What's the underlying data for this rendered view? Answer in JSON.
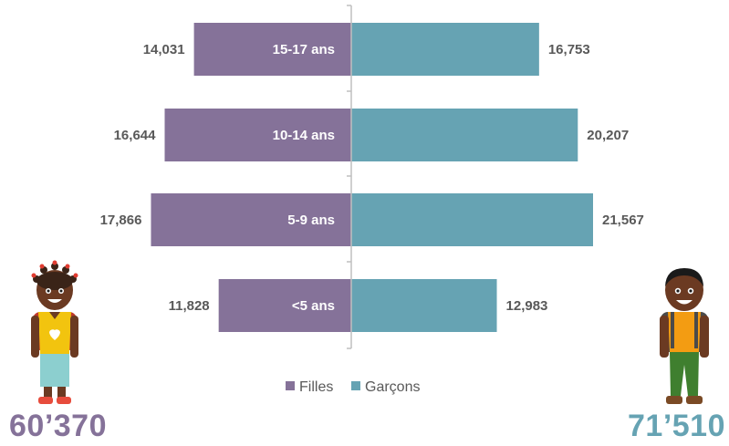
{
  "colors": {
    "girls": "#857299",
    "boys": "#66a3b3",
    "axis": "#bfbfbf",
    "value_text": "#595959"
  },
  "chart_data": {
    "type": "bar",
    "orientation": "horizontal-butterfly",
    "categories": [
      "15-17 ans",
      "10-14 ans",
      "5-9 ans",
      "<5 ans"
    ],
    "series": [
      {
        "name": "Filles",
        "values": [
          14031,
          16644,
          17866,
          11828
        ],
        "labels": [
          "14,031",
          "16,644",
          "17,866",
          "11,828"
        ]
      },
      {
        "name": "Garçons",
        "values": [
          16753,
          20207,
          21567,
          12983
        ],
        "labels": [
          "16,753",
          "20,207",
          "21,567",
          "12,983"
        ]
      }
    ],
    "legend": {
      "placement": "bottom",
      "items": [
        "Filles",
        "Garçons"
      ]
    },
    "grid": false
  },
  "totals": {
    "girls": "60’370",
    "boys": "71’510"
  },
  "illustrations": {
    "left": "girl-with-backpack-icon",
    "right": "boy-with-backpack-icon"
  }
}
